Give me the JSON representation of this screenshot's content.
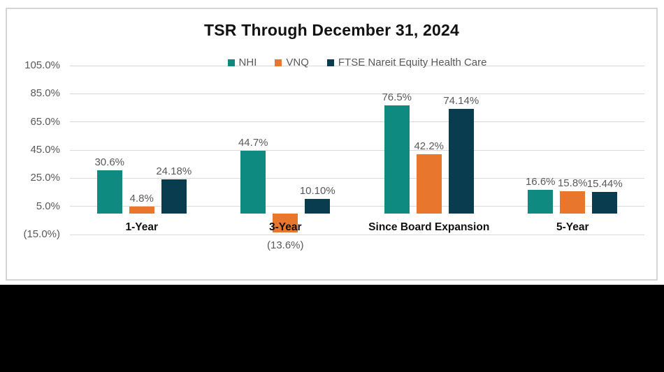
{
  "chart_data": {
    "type": "bar",
    "title": "TSR Through December 31, 2024",
    "categories": [
      "1-Year",
      "3-Year",
      "Since Board Expansion",
      "5-Year"
    ],
    "series": [
      {
        "name": "NHI",
        "color": "#0E8A80",
        "values": [
          30.6,
          44.7,
          76.5,
          16.6
        ],
        "data_labels": [
          "30.6%",
          "44.7%",
          "76.5%",
          "16.6%"
        ]
      },
      {
        "name": "VNQ",
        "color": "#E8762C",
        "values": [
          4.8,
          -13.6,
          42.2,
          15.8
        ],
        "data_labels": [
          "4.8%",
          "(13.6%)",
          "42.2%",
          "15.8%"
        ]
      },
      {
        "name": "FTSE Nareit Equity Health Care",
        "color": "#093C4E",
        "values": [
          24.18,
          10.1,
          74.14,
          15.44
        ],
        "data_labels": [
          "24.18%",
          "10.10%",
          "74.14%",
          "15.44%"
        ]
      }
    ],
    "y_axis": {
      "min": -15,
      "max": 105,
      "tick_step": 20,
      "ticks": [
        105,
        85,
        65,
        45,
        25,
        5,
        -15
      ],
      "tick_labels": [
        "105.0%",
        "85.0%",
        "65.0%",
        "45.0%",
        "25.0%",
        "5.0%",
        "(15.0%)"
      ]
    },
    "grid": true,
    "legend_position": "top-center"
  },
  "colors": {
    "title": "#111111",
    "data_label": "#595959",
    "tick_label": "#595959",
    "legend_label": "#595959",
    "category_label": "#111111",
    "gridline": "#D9D9D9",
    "card_border": "#D5D5D5",
    "card_background": "#FFFFFF",
    "page_background": "#FFFFFF",
    "footer_bar": "#000000"
  }
}
